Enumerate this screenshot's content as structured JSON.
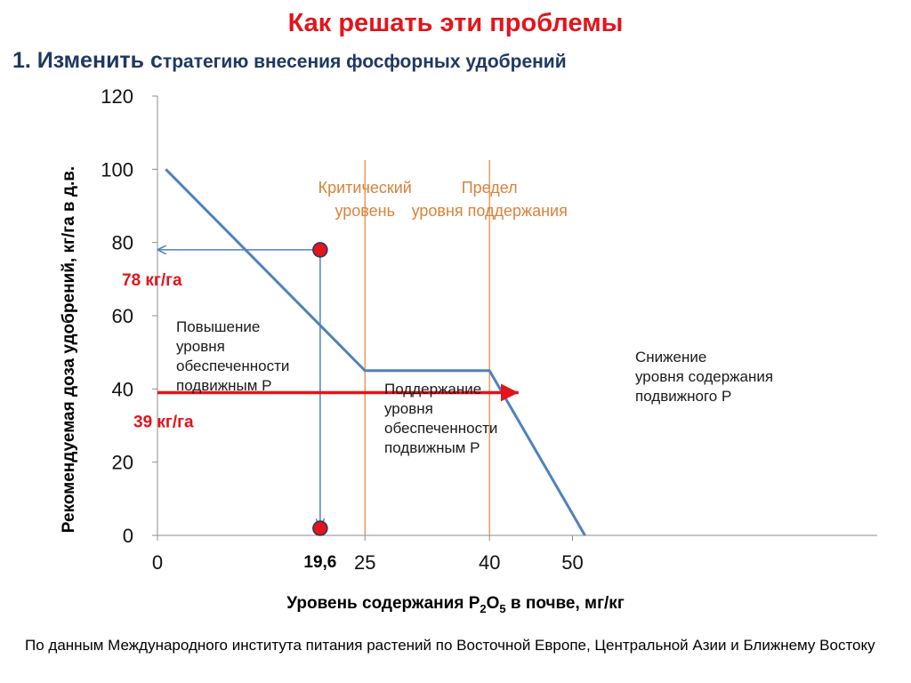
{
  "slide": {
    "title": "Как решать эти проблемы",
    "subtitle_main": "1. Изменить с",
    "subtitle_rest": "тратегию внесения фосфорных удобрений",
    "source": "По данным Международного института питания растений по Восточной Европе, Центральной Азии и Ближнему Востоку"
  },
  "axes": {
    "ylabel": "Рекомендуемая доза удобрений, кг/га в д.в.",
    "xlabel_pre": "Уровень содержания P",
    "xlabel_sub1": "2",
    "xlabel_mid": "O",
    "xlabel_sub2": "5",
    "xlabel_post": "  в почве, мг/кг"
  },
  "chart_data": {
    "type": "line",
    "series": [
      {
        "x": [
          1,
          25,
          40,
          51.5
        ],
        "y": [
          100,
          45,
          45,
          0
        ],
        "color": "#4f81bd"
      }
    ],
    "xlim": [
      0,
      52
    ],
    "ylim": [
      0,
      120
    ],
    "xticks": [
      0,
      25,
      40,
      50
    ],
    "yticks": [
      0,
      20,
      40,
      60,
      80,
      100,
      120
    ],
    "grid": false,
    "vertical_lines": [
      {
        "x": 25,
        "label_lines": [
          "Критический",
          "уровень"
        ],
        "color": "#e3823a"
      },
      {
        "x": 40,
        "label_lines": [
          "Предел",
          "уровня поддержания"
        ],
        "color": "#e3823a"
      }
    ],
    "zone_labels": [
      {
        "lines": [
          "Повышение",
          "уровня",
          "обеспеченности",
          "подвижным Р"
        ]
      },
      {
        "lines": [
          "Поддержание",
          "уровня",
          "обеспеченности",
          "подвижным Р"
        ]
      },
      {
        "lines": [
          "Снижение",
          "уровня содержания",
          "подвижного Р"
        ]
      }
    ],
    "highlight_points": [
      {
        "x": 19.6,
        "y": 78,
        "color": "#e3141b"
      },
      {
        "x": 19.6,
        "y": 0,
        "color": "#e3141b"
      }
    ],
    "annotations": [
      {
        "text": "78 кг/га",
        "y": 78,
        "color": "#e3141b"
      },
      {
        "text": "39 кг/га",
        "y": 39,
        "color": "#e3141b"
      },
      {
        "text": "19,6",
        "x": 19.6
      }
    ],
    "arrow_39": {
      "y": 39,
      "x_from": 0,
      "x_to": 43.5,
      "color": "#e3141b"
    }
  }
}
